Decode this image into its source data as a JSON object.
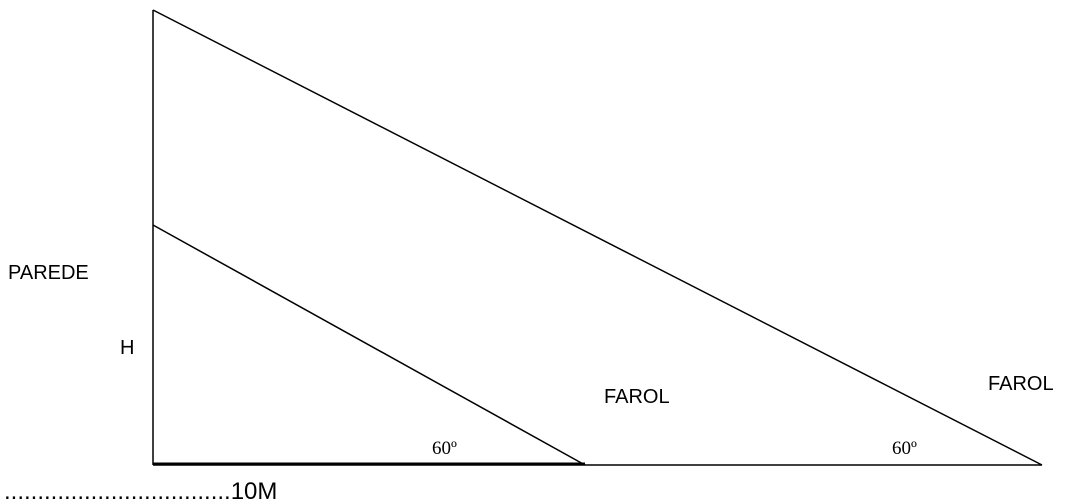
{
  "labels": {
    "wall": "PAREDE",
    "height": "H",
    "lamp1": "FAROL",
    "lamp2": "FAROL",
    "angle1": "60º",
    "angle2": "60º",
    "distance": "..................................10M"
  }
}
